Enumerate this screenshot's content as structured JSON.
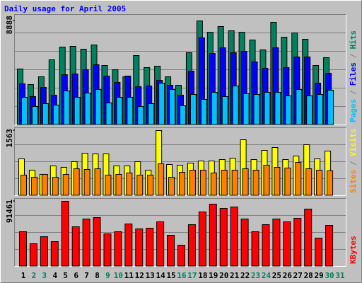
{
  "chart_data": {
    "type": "bar",
    "title": "Daily usage for April 2005",
    "categories": [
      "1",
      "2",
      "3",
      "4",
      "5",
      "6",
      "7",
      "8",
      "9",
      "10",
      "11",
      "12",
      "13",
      "14",
      "15",
      "16",
      "17",
      "18",
      "19",
      "20",
      "21",
      "22",
      "23",
      "24",
      "25",
      "26",
      "27",
      "28",
      "29",
      "30",
      "31"
    ],
    "category_colors": [
      "#000000",
      "#00805c",
      "#00805c",
      "#000000",
      "#000000",
      "#000000",
      "#000000",
      "#000000",
      "#00805c",
      "#00805c",
      "#000000",
      "#000000",
      "#000000",
      "#000000",
      "#000000",
      "#00805c",
      "#00805c",
      "#000000",
      "#000000",
      "#000000",
      "#000000",
      "#000000",
      "#00805c",
      "#00805c",
      "#000000",
      "#000000",
      "#000000",
      "#000000",
      "#000000",
      "#00805c",
      "#00805c"
    ],
    "legend_separator": "/",
    "panels": [
      {
        "ylim": [
          0,
          8888
        ],
        "yticks": [
          8888
        ],
        "series": [
          {
            "name": "Hits",
            "color": "#00805c",
            "values": [
              4777,
              3446,
              4111,
              5563,
              6651,
              6711,
              6470,
              6832,
              5079,
              4716,
              4111,
              5925,
              4898,
              5018,
              4111,
              3386,
              6167,
              8888,
              7921,
              8404,
              8042,
              7921,
              7256,
              6409,
              8767,
              7497,
              7860,
              7316,
              5079,
              5744,
              0
            ]
          },
          {
            "name": "Files",
            "color": "#0000ff",
            "values": [
              3507,
              2418,
              3204,
              2539,
              4293,
              4353,
              4716,
              5139,
              4172,
              3628,
              4172,
              3265,
              3325,
              3809,
              3386,
              2539,
              4595,
              7437,
              6107,
              6590,
              6167,
              6288,
              5381,
              4837,
              6590,
              4897,
              5804,
              5804,
              3567,
              4414,
              0
            ]
          },
          {
            "name": "Pages",
            "color": "#00c0ff",
            "values": [
              2358,
              1572,
              1814,
              1693,
              2902,
              2358,
              2721,
              3023,
              1874,
              2358,
              2358,
              1572,
              1814,
              3567,
              3023,
              1632,
              2600,
              2177,
              2781,
              2418,
              3325,
              2660,
              2600,
              2781,
              2781,
              2479,
              3023,
              2479,
              2600,
              2963,
              0
            ]
          }
        ]
      },
      {
        "ylim": [
          0,
          1563
        ],
        "yticks": [
          1563
        ],
        "series": [
          {
            "name": "Visits",
            "color": "#ffff00",
            "values": [
              883,
              612,
              510,
              714,
              680,
              816,
              1019,
              1002,
              1002,
              714,
              714,
              816,
              612,
              1563,
              748,
              731,
              782,
              833,
              833,
              866,
              900,
              1342,
              866,
              1087,
              1155,
              866,
              951,
              1223,
              883,
              1070,
              0
            ]
          },
          {
            "name": "Sites",
            "color": "#ff8000",
            "values": [
              493,
              442,
              510,
              442,
              510,
              646,
              629,
              646,
              493,
              510,
              544,
              493,
              493,
              765,
              442,
              561,
              612,
              612,
              544,
              612,
              612,
              646,
              612,
              731,
              680,
              663,
              799,
              646,
              612,
              595,
              0
            ]
          }
        ]
      },
      {
        "ylim": [
          0,
          91461
        ],
        "yticks": [
          91461
        ],
        "series": [
          {
            "name": "KBytes",
            "color": "#ff0000",
            "values": [
              48710,
              31810,
              41750,
              34790,
              91461,
              55670,
              66600,
              68590,
              45730,
              48710,
              59640,
              52690,
              53680,
              62630,
              43740,
              29820,
              58650,
              76540,
              87480,
              81520,
              83500,
              66600,
              48710,
              58650,
              66600,
              62630,
              67600,
              80530,
              39760,
              57660,
              0
            ]
          }
        ]
      }
    ]
  }
}
